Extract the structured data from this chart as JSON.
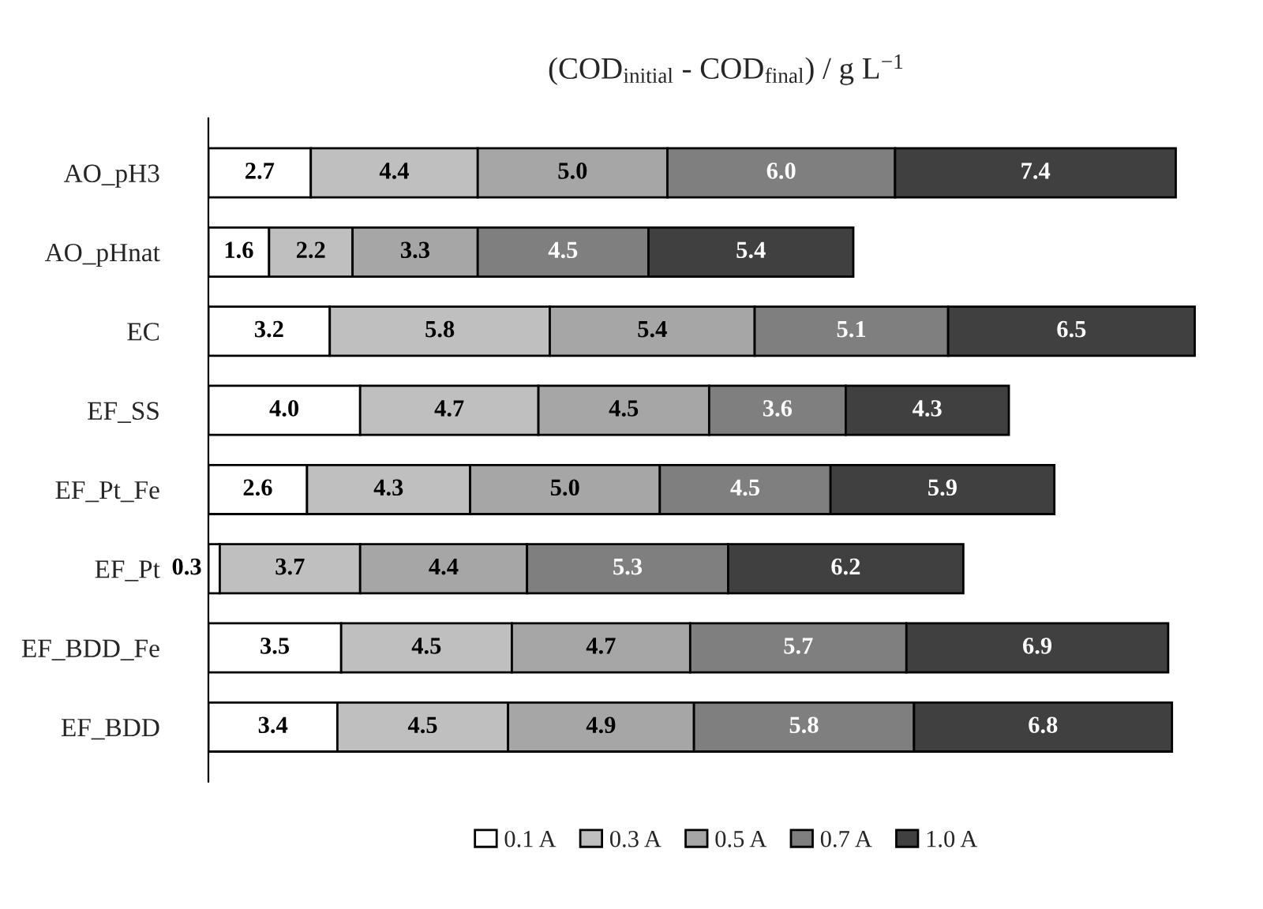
{
  "chart_data": {
    "type": "bar",
    "orientation": "horizontal",
    "stacked": true,
    "data_labels": true,
    "legend": "bottom",
    "grid": false,
    "title": "(COD$_{initial}$ - COD$_{final}$) / g L$^{−1}$",
    "categories": [
      "AO_pH3",
      "AO_pHnat",
      "EC",
      "EF_SS",
      "EF_Pt_Fe",
      "EF_Pt",
      "EF_BDD_Fe",
      "EF_BDD"
    ],
    "series": [
      {
        "name": "0.1 A",
        "color": "#ffffff",
        "values": [
          2.7,
          1.6,
          3.2,
          4.0,
          2.6,
          0.3,
          3.5,
          3.4
        ],
        "value_labels": [
          "2.7",
          "1.6",
          "3.2",
          "4.0",
          "2.6",
          "0.3",
          "3.5",
          "3.4"
        ]
      },
      {
        "name": "0.3 A",
        "color": "#bfbfbf",
        "values": [
          4.4,
          2.2,
          5.8,
          4.7,
          4.3,
          3.7,
          4.5,
          4.5
        ]
      },
      {
        "name": "0.5 A",
        "color": "#a6a6a6",
        "values": [
          5.0,
          3.3,
          5.4,
          4.5,
          5.0,
          4.4,
          4.7,
          4.9
        ],
        "value_labels": [
          "5.0",
          "3.3",
          "5.4",
          "4.5",
          "5.0",
          "4.4",
          "4.7",
          "4.9"
        ]
      },
      {
        "name": "0.7 A",
        "color": "#7f7f7f",
        "values": [
          6.0,
          4.5,
          5.1,
          3.6,
          4.5,
          5.3,
          5.7,
          5.8
        ],
        "value_labels": [
          "6.0",
          "4.5",
          "5.1",
          "3.6",
          "4.5",
          "5.3",
          "5.7",
          "5.8"
        ]
      },
      {
        "name": "1.0 A",
        "color": "#404040",
        "values": [
          7.4,
          5.4,
          6.5,
          4.3,
          5.9,
          6.2,
          6.9,
          6.8
        ]
      }
    ]
  }
}
